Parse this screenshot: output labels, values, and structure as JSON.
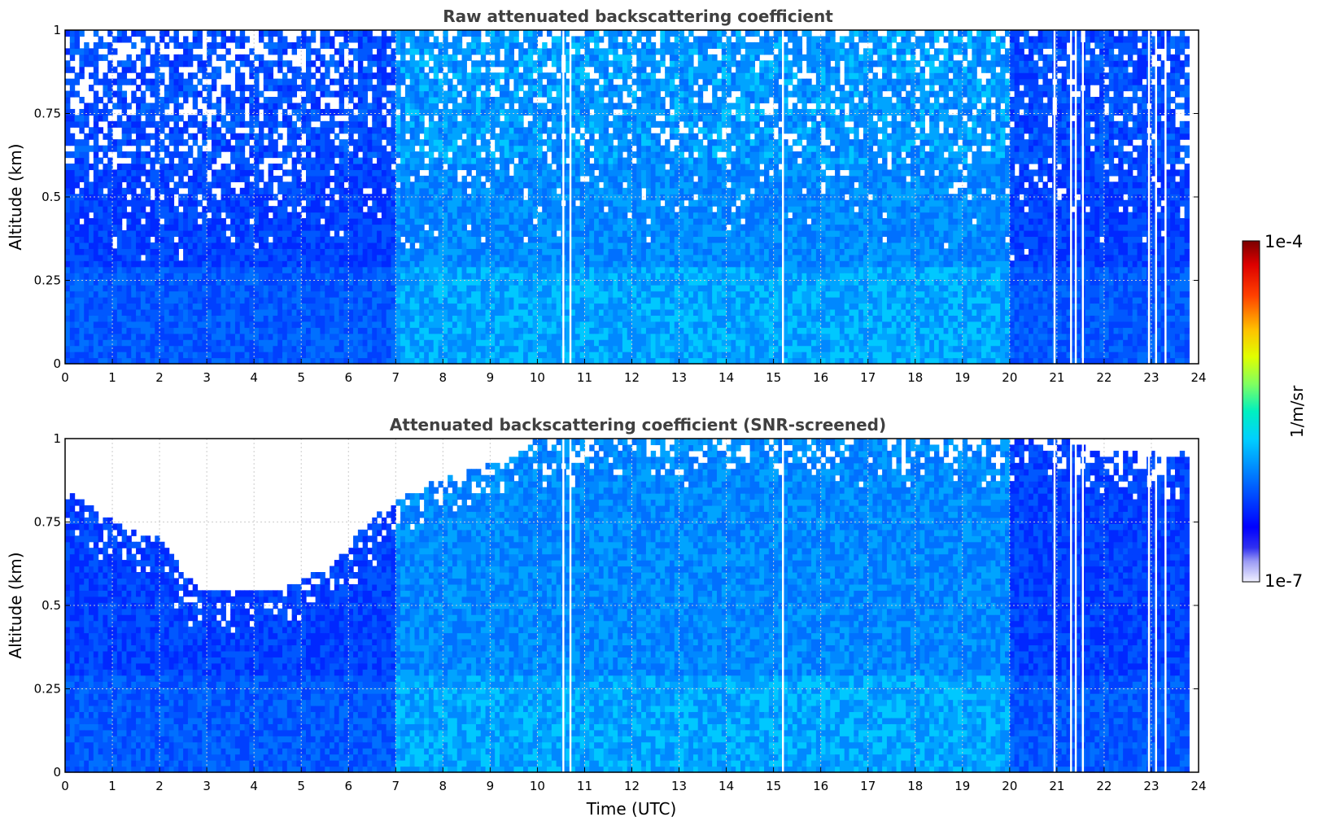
{
  "chart_data": [
    {
      "type": "heatmap",
      "title": "Raw attenuated backscattering coefficient",
      "xlabel": "",
      "ylabel": "Altitude (km)",
      "xlim": [
        0,
        24
      ],
      "ylim": [
        0,
        1
      ],
      "x_ticks": [
        "0",
        "1",
        "2",
        "3",
        "4",
        "5",
        "6",
        "7",
        "8",
        "9",
        "10",
        "11",
        "12",
        "13",
        "14",
        "15",
        "16",
        "17",
        "18",
        "19",
        "20",
        "21",
        "22",
        "23",
        "24"
      ],
      "y_ticks": [
        "0",
        "0.25",
        "0.5",
        "0.75",
        "1"
      ],
      "grid": true,
      "screened": false,
      "data_end_time": 23.8,
      "missing_data_times": [
        10.55,
        10.7,
        15.2,
        20.95,
        21.3,
        21.4,
        21.55,
        22.95,
        23.1,
        23.3
      ]
    },
    {
      "type": "heatmap",
      "title": "Attenuated backscattering coefficient (SNR-screened)",
      "xlabel": "Time (UTC)",
      "ylabel": "Altitude (km)",
      "xlim": [
        0,
        24
      ],
      "ylim": [
        0,
        1
      ],
      "x_ticks": [
        "0",
        "1",
        "2",
        "3",
        "4",
        "5",
        "6",
        "7",
        "8",
        "9",
        "10",
        "11",
        "12",
        "13",
        "14",
        "15",
        "16",
        "17",
        "18",
        "19",
        "20",
        "21",
        "22",
        "23",
        "24"
      ],
      "y_ticks": [
        "0",
        "0.25",
        "0.5",
        "0.75",
        "1"
      ],
      "grid": true,
      "screened": true,
      "data_end_time": 23.8,
      "missing_data_times": [
        10.55,
        10.7,
        15.2,
        20.95,
        21.3,
        21.4,
        21.55,
        22.95,
        23.1,
        23.3
      ],
      "valid_data_top_km": [
        {
          "t": 0,
          "z": 0.85
        },
        {
          "t": 1,
          "z": 0.75
        },
        {
          "t": 2,
          "z": 0.7
        },
        {
          "t": 2.8,
          "z": 0.55
        },
        {
          "t": 3.5,
          "z": 0.55
        },
        {
          "t": 4.5,
          "z": 0.55
        },
        {
          "t": 5.5,
          "z": 0.6
        },
        {
          "t": 6.5,
          "z": 0.75
        },
        {
          "t": 7.5,
          "z": 0.85
        },
        {
          "t": 8.5,
          "z": 0.9
        },
        {
          "t": 9.5,
          "z": 0.95
        },
        {
          "t": 10,
          "z": 1.0
        },
        {
          "t": 21,
          "z": 1.0
        },
        {
          "t": 22,
          "z": 0.95
        },
        {
          "t": 23,
          "z": 0.95
        },
        {
          "t": 24,
          "z": 0.95
        }
      ]
    }
  ],
  "colorbar": {
    "label": "1/m/sr",
    "max_label": "1e-4",
    "min_label": "1e-7",
    "scale": "log",
    "range": [
      1e-07,
      0.0001
    ],
    "colormap": [
      "#ffffff",
      "#0000ff",
      "#00a0ff",
      "#00ffff",
      "#80ff80",
      "#ffff00",
      "#ff8000",
      "#ff0000",
      "#800000"
    ]
  }
}
